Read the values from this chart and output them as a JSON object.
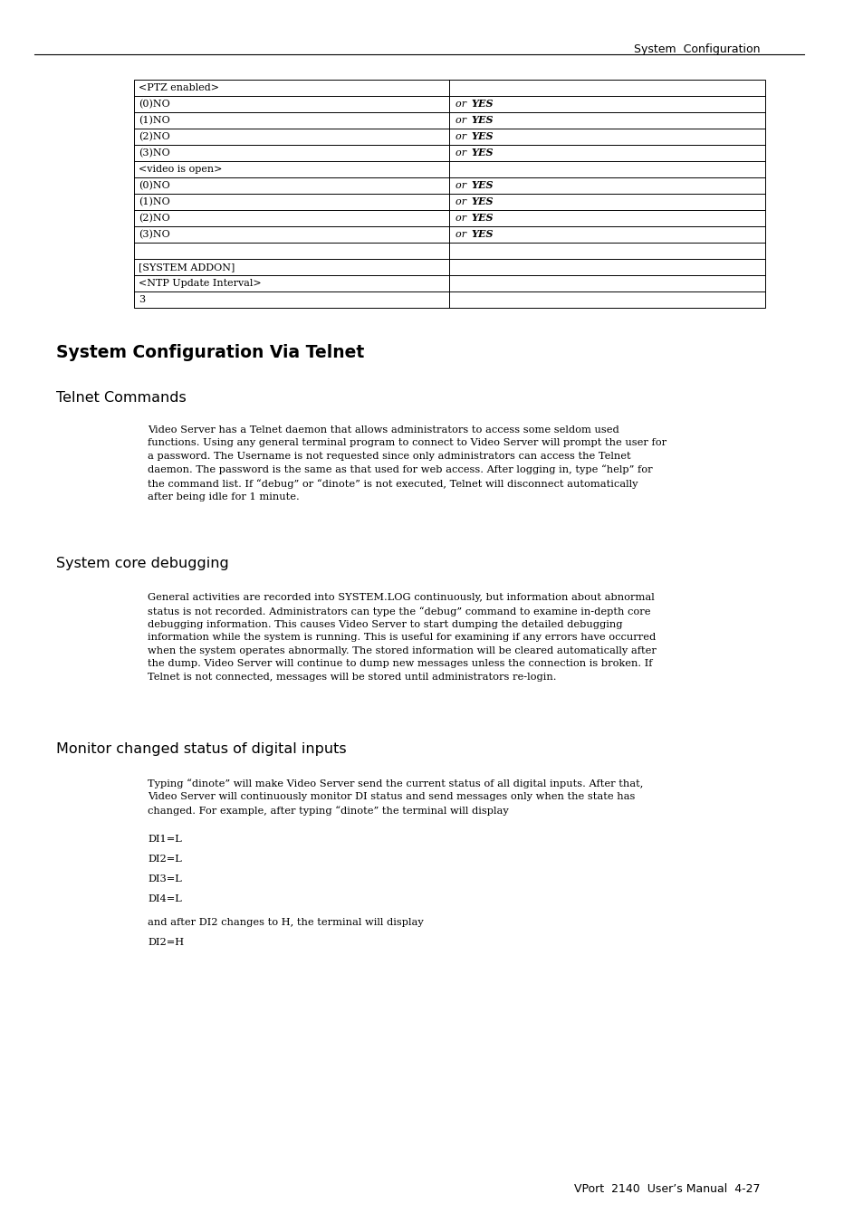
{
  "page_bg": "#ffffff",
  "header_text": "System  Configuration",
  "footer_text": "VPort  2140  User’s Manual  4-27",
  "table_rows": [
    {
      "col1": "<PTZ enabled>",
      "col2": "",
      "italic_bold": false
    },
    {
      "col1": "(0)NO",
      "col2": "or YES",
      "italic_bold": true
    },
    {
      "col1": "(1)NO",
      "col2": "or YES",
      "italic_bold": true
    },
    {
      "col1": "(2)NO",
      "col2": "or YES",
      "italic_bold": true
    },
    {
      "col1": "(3)NO",
      "col2": "or YES",
      "italic_bold": true
    },
    {
      "col1": "<video is open>",
      "col2": "",
      "italic_bold": false
    },
    {
      "col1": "(0)NO",
      "col2": "or YES",
      "italic_bold": true
    },
    {
      "col1": "(1)NO",
      "col2": "or YES",
      "italic_bold": true
    },
    {
      "col1": "(2)NO",
      "col2": "or YES",
      "italic_bold": true
    },
    {
      "col1": "(3)NO",
      "col2": "or YES",
      "italic_bold": true
    },
    {
      "col1": "",
      "col2": "",
      "italic_bold": false
    },
    {
      "col1": "[SYSTEM ADDON]",
      "col2": "",
      "italic_bold": false
    },
    {
      "col1": "<NTP Update Interval>",
      "col2": "",
      "italic_bold": false
    },
    {
      "col1": "3",
      "col2": "",
      "italic_bold": false
    }
  ],
  "section1_title": "System Configuration Via Telnet",
  "section2_title": "Telnet Commands",
  "section2_body": "Video Server has a Telnet daemon that allows administrators to access some seldom used\nfunctions. Using any general terminal program to connect to Video Server will prompt the user for\na password. The Username is not requested since only administrators can access the Telnet\ndaemon. The password is the same as that used for web access. After logging in, type “help” for\nthe command list. If “debug” or “dinote” is not executed, Telnet will disconnect automatically\nafter being idle for 1 minute.",
  "section3_title": "System core debugging",
  "section3_body": "General activities are recorded into SYSTEM.LOG continuously, but information about abnormal\nstatus is not recorded. Administrators can type the “debug” command to examine in-depth core\ndebugging information. This causes Video Server to start dumping the detailed debugging\ninformation while the system is running. This is useful for examining if any errors have occurred\nwhen the system operates abnormally. The stored information will be cleared automatically after\nthe dump. Video Server will continue to dump new messages unless the connection is broken. If\nTelnet is not connected, messages will be stored until administrators re-login.",
  "section4_title": "Monitor changed status of digital inputs",
  "section4_body": "Typing “dinote” will make Video Server send the current status of all digital inputs. After that,\nVideo Server will continuously monitor DI status and send messages only when the state has\nchanged. For example, after typing “dinote” the terminal will display",
  "di_lines": [
    "DI1=L",
    "DI2=L",
    "DI3=L",
    "DI4=L"
  ],
  "after_text": "and after DI2 changes to H, the terminal will display",
  "di2h_text": "DI2=H",
  "text_color": "#000000",
  "font_size_header": 9.0,
  "font_size_section1": 13.5,
  "font_size_section2": 11.5,
  "font_size_body": 8.2,
  "font_size_table": 8.0,
  "font_size_footer": 9.0
}
